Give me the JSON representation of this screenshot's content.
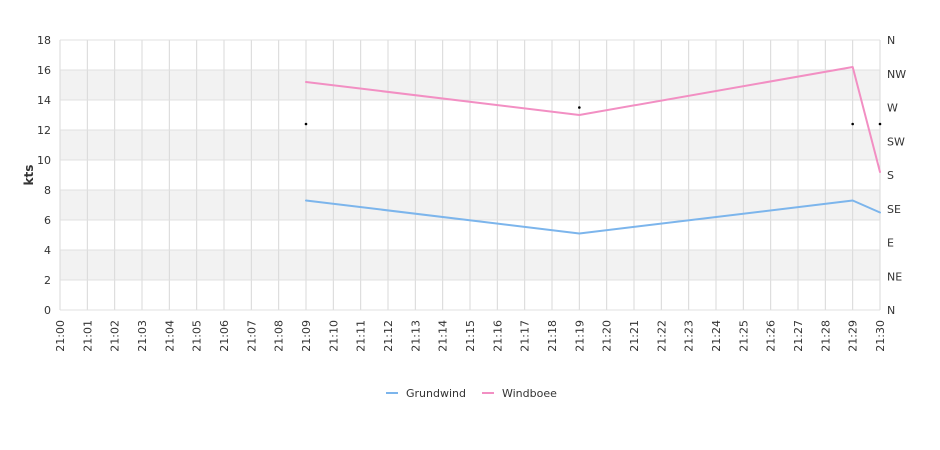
{
  "chart_data": {
    "type": "line",
    "ylabel": "kts",
    "ylim": [
      0,
      18
    ],
    "yticks": [
      "0",
      "2",
      "4",
      "6",
      "8",
      "10",
      "12",
      "14",
      "16",
      "18"
    ],
    "x_categories": [
      "21:00",
      "21:01",
      "21:02",
      "21:03",
      "21:04",
      "21:05",
      "21:06",
      "21:07",
      "21:08",
      "21:09",
      "21:10",
      "21:11",
      "21:12",
      "21:13",
      "21:14",
      "21:15",
      "21:16",
      "21:17",
      "21:18",
      "21:19",
      "21:20",
      "21:21",
      "21:22",
      "21:23",
      "21:24",
      "21:25",
      "21:26",
      "21:27",
      "21:28",
      "21:29",
      "21:30"
    ],
    "right_axis": {
      "labels": [
        "N",
        "NE",
        "E",
        "SE",
        "S",
        "SW",
        "W",
        "NW",
        "N"
      ],
      "range_degrees": [
        0,
        360
      ]
    },
    "series": [
      {
        "name": "Grundwind",
        "color": "#7cb5ec",
        "points": [
          [
            "21:09",
            7.3
          ],
          [
            "21:19",
            5.1
          ],
          [
            "21:29",
            7.3
          ],
          [
            "21:30",
            6.5
          ]
        ]
      },
      {
        "name": "Windboee",
        "color": "#f28fc3",
        "points": [
          [
            "21:09",
            15.2
          ],
          [
            "21:19",
            13.0
          ],
          [
            "21:29",
            16.2
          ],
          [
            "21:30",
            9.2
          ]
        ]
      }
    ],
    "direction_markers": [
      {
        "x": "21:09",
        "y": 12.4
      },
      {
        "x": "21:19",
        "y": 13.5
      },
      {
        "x": "21:29",
        "y": 12.4
      },
      {
        "x": "21:30",
        "y": 12.4
      }
    ],
    "grid": true,
    "legend_position": "bottom-center"
  }
}
